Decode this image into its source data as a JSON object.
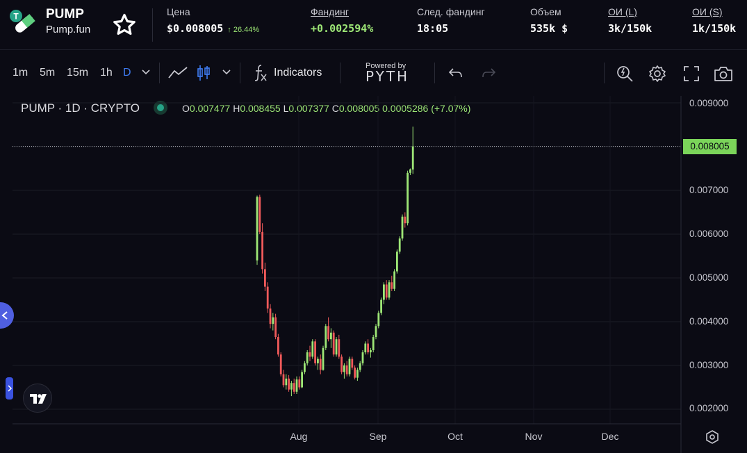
{
  "header": {
    "asset_name": "PUMP",
    "asset_sub": "Pump.fun",
    "logo_icon": "pill-token-icon",
    "stats": [
      {
        "label": "Цена",
        "value": "$0.008005",
        "change": "↑ 26.44%",
        "underline": false,
        "green": false
      },
      {
        "label": "Фандинг",
        "value": "+0.002594%",
        "underline": true,
        "green": true
      },
      {
        "label": "След. фандинг",
        "value": "18:05",
        "underline": false,
        "green": false
      },
      {
        "label": "Объем",
        "value": "535k $",
        "underline": false,
        "green": false
      },
      {
        "label": "ОИ (L)",
        "value": "3k/150k",
        "underline": true,
        "green": false
      },
      {
        "label": "ОИ (S)",
        "value": "1k/150k",
        "underline": true,
        "green": false
      }
    ]
  },
  "toolbar": {
    "timeframes": [
      "1m",
      "5m",
      "15m",
      "1h",
      "D"
    ],
    "active_timeframe": "D",
    "indicators_label": "Indicators",
    "powered_by": "Powered by",
    "pyth": "PYTH"
  },
  "legend": {
    "symbol": "PUMP · 1D · CRYPTO",
    "o_key": "O",
    "o": "0.007477",
    "h_key": "H",
    "h": "0.008455",
    "l_key": "L",
    "l": "0.007377",
    "c_key": "C",
    "c": "0.008005",
    "change": "0.0005286 (+7.07%)"
  },
  "colors": {
    "up": "#9de676",
    "down": "#f05a5a",
    "accent": "#3f7cf3",
    "last_price_tag": "#7bd45a"
  },
  "chart_data": {
    "type": "candlestick",
    "y_ticks": [
      "0.009000",
      "0.008000",
      "0.007000",
      "0.006000",
      "0.005000",
      "0.004000",
      "0.003000",
      "0.002000"
    ],
    "y_tick_values": [
      0.009,
      0.008,
      0.007,
      0.006,
      0.005,
      0.004,
      0.003,
      0.002
    ],
    "ylim": [
      0.00165,
      0.0093
    ],
    "x_ticks": [
      "Aug",
      "Sep",
      "Oct",
      "Nov",
      "Dec"
    ],
    "last_price": "0.008005",
    "last_price_value": 0.008005,
    "grid": true,
    "candles": [
      [
        0.0054,
        0.00688,
        0.0053,
        0.00685
      ],
      [
        0.00685,
        0.0069,
        0.006,
        0.00605
      ],
      [
        0.00605,
        0.00625,
        0.0051,
        0.0052
      ],
      [
        0.0052,
        0.00535,
        0.0047,
        0.0048
      ],
      [
        0.0048,
        0.0049,
        0.0042,
        0.0043
      ],
      [
        0.0043,
        0.0044,
        0.00385,
        0.00395
      ],
      [
        0.00395,
        0.0042,
        0.0038,
        0.0041
      ],
      [
        0.0041,
        0.00418,
        0.0036,
        0.00365
      ],
      [
        0.00365,
        0.00372,
        0.0032,
        0.00325
      ],
      [
        0.00325,
        0.0033,
        0.00275,
        0.0028
      ],
      [
        0.0028,
        0.0029,
        0.0025,
        0.00255
      ],
      [
        0.00255,
        0.0028,
        0.00245,
        0.0027
      ],
      [
        0.0027,
        0.00278,
        0.0024,
        0.00245
      ],
      [
        0.00245,
        0.00265,
        0.0023,
        0.0026
      ],
      [
        0.0026,
        0.0027,
        0.00235,
        0.0024
      ],
      [
        0.0024,
        0.00275,
        0.00235,
        0.00268
      ],
      [
        0.00268,
        0.00275,
        0.00245,
        0.0025
      ],
      [
        0.0025,
        0.0029,
        0.00248,
        0.00285
      ],
      [
        0.00285,
        0.0031,
        0.0028,
        0.00305
      ],
      [
        0.00305,
        0.00335,
        0.003,
        0.0033
      ],
      [
        0.0033,
        0.00345,
        0.0031,
        0.0032
      ],
      [
        0.0032,
        0.0036,
        0.00315,
        0.00355
      ],
      [
        0.00355,
        0.0036,
        0.003,
        0.00305
      ],
      [
        0.00305,
        0.0032,
        0.0029,
        0.00315
      ],
      [
        0.00315,
        0.00325,
        0.0028,
        0.0029
      ],
      [
        0.0029,
        0.00345,
        0.00288,
        0.0034
      ],
      [
        0.0034,
        0.00395,
        0.00335,
        0.0039
      ],
      [
        0.0039,
        0.0041,
        0.00355,
        0.0036
      ],
      [
        0.0036,
        0.00385,
        0.0034,
        0.00375
      ],
      [
        0.00375,
        0.0038,
        0.0032,
        0.00325
      ],
      [
        0.00325,
        0.00365,
        0.0032,
        0.0036
      ],
      [
        0.0036,
        0.0037,
        0.00315,
        0.0032
      ],
      [
        0.0032,
        0.00325,
        0.0028,
        0.00285
      ],
      [
        0.00285,
        0.00305,
        0.0027,
        0.003
      ],
      [
        0.003,
        0.0031,
        0.00275,
        0.0028
      ],
      [
        0.0028,
        0.0032,
        0.00275,
        0.00315
      ],
      [
        0.00315,
        0.0032,
        0.0029,
        0.00295
      ],
      [
        0.00295,
        0.003,
        0.00268,
        0.00272
      ],
      [
        0.00272,
        0.00295,
        0.00265,
        0.0029
      ],
      [
        0.0029,
        0.0031,
        0.00285,
        0.00305
      ],
      [
        0.00305,
        0.00335,
        0.003,
        0.0033
      ],
      [
        0.0033,
        0.00355,
        0.00325,
        0.0035
      ],
      [
        0.0035,
        0.0036,
        0.00325,
        0.0033
      ],
      [
        0.0033,
        0.0034,
        0.00318,
        0.00335
      ],
      [
        0.00335,
        0.0037,
        0.0033,
        0.00365
      ],
      [
        0.00365,
        0.00395,
        0.0036,
        0.0039
      ],
      [
        0.0039,
        0.00425,
        0.00385,
        0.0042
      ],
      [
        0.0042,
        0.00455,
        0.00415,
        0.0045
      ],
      [
        0.0045,
        0.0049,
        0.0044,
        0.00485
      ],
      [
        0.00485,
        0.00495,
        0.0045,
        0.00455
      ],
      [
        0.00455,
        0.00495,
        0.0045,
        0.0049
      ],
      [
        0.0049,
        0.00505,
        0.0047,
        0.00475
      ],
      [
        0.00475,
        0.0052,
        0.0047,
        0.00515
      ],
      [
        0.00515,
        0.00565,
        0.0051,
        0.0056
      ],
      [
        0.0056,
        0.00595,
        0.00555,
        0.0059
      ],
      [
        0.0059,
        0.00645,
        0.00585,
        0.0064
      ],
      [
        0.0064,
        0.0065,
        0.00615,
        0.00625
      ],
      [
        0.00625,
        0.00745,
        0.0062,
        0.0074
      ],
      [
        0.0074,
        0.0075,
        0.00735,
        0.00748
      ],
      [
        0.007477,
        0.008455,
        0.007377,
        0.008005
      ]
    ]
  }
}
